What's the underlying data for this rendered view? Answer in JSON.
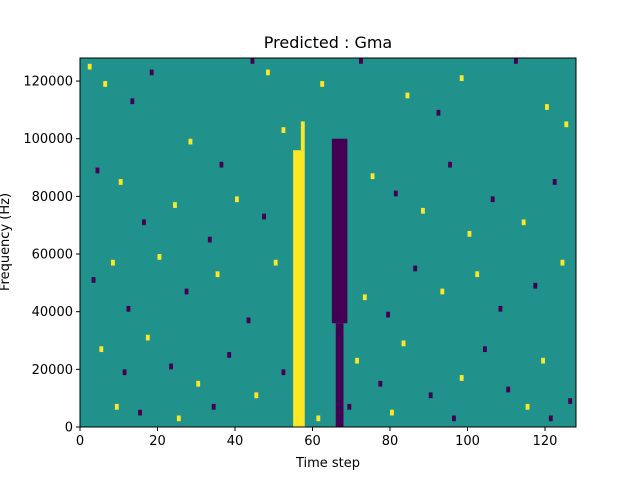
{
  "chart_data": {
    "type": "heatmap",
    "title": "Predicted : Gma",
    "xlabel": "Time step",
    "ylabel": "Frequency (Hz)",
    "xlim": [
      0,
      128
    ],
    "ylim": [
      0,
      128000
    ],
    "xticks": [
      0,
      20,
      40,
      60,
      80,
      100,
      120
    ],
    "xtick_labels": [
      "0",
      "20",
      "40",
      "60",
      "80",
      "100",
      "120"
    ],
    "yticks": [
      0,
      20000,
      40000,
      60000,
      80000,
      100000,
      120000
    ],
    "ytick_labels": [
      "0",
      "20000",
      "40000",
      "60000",
      "80000",
      "100000",
      "120000"
    ],
    "colormap": "viridis",
    "colors": {
      "background": "#21918c",
      "high": "#fde725",
      "low": "#440154"
    },
    "grid": false,
    "legend": "none",
    "n_time_steps": 128,
    "n_frequency_bins": 64,
    "dominant_value": "mid",
    "bands": [
      {
        "level": "high",
        "x": [
          55,
          58
        ],
        "y": [
          0,
          96000
        ]
      },
      {
        "level": "high",
        "x": [
          57,
          58
        ],
        "y": [
          96000,
          106000
        ]
      },
      {
        "level": "low",
        "x": [
          65,
          69
        ],
        "y": [
          36000,
          100000
        ]
      },
      {
        "level": "low",
        "x": [
          66,
          68
        ],
        "y": [
          0,
          36000
        ]
      }
    ],
    "cells": [
      {
        "x": 2,
        "y": 124000,
        "level": "high"
      },
      {
        "x": 6,
        "y": 118000,
        "level": "high"
      },
      {
        "x": 13,
        "y": 112000,
        "level": "low"
      },
      {
        "x": 18,
        "y": 122000,
        "level": "low"
      },
      {
        "x": 28,
        "y": 98000,
        "level": "high"
      },
      {
        "x": 36,
        "y": 90000,
        "level": "low"
      },
      {
        "x": 44,
        "y": 126000,
        "level": "low"
      },
      {
        "x": 48,
        "y": 122000,
        "level": "high"
      },
      {
        "x": 52,
        "y": 102000,
        "level": "high"
      },
      {
        "x": 62,
        "y": 118000,
        "level": "high"
      },
      {
        "x": 72,
        "y": 126000,
        "level": "low"
      },
      {
        "x": 84,
        "y": 114000,
        "level": "high"
      },
      {
        "x": 92,
        "y": 108000,
        "level": "low"
      },
      {
        "x": 98,
        "y": 120000,
        "level": "high"
      },
      {
        "x": 112,
        "y": 126000,
        "level": "low"
      },
      {
        "x": 120,
        "y": 110000,
        "level": "high"
      },
      {
        "x": 125,
        "y": 104000,
        "level": "high"
      },
      {
        "x": 4,
        "y": 88000,
        "level": "low"
      },
      {
        "x": 10,
        "y": 84000,
        "level": "high"
      },
      {
        "x": 16,
        "y": 70000,
        "level": "low"
      },
      {
        "x": 24,
        "y": 76000,
        "level": "high"
      },
      {
        "x": 33,
        "y": 64000,
        "level": "low"
      },
      {
        "x": 40,
        "y": 78000,
        "level": "high"
      },
      {
        "x": 47,
        "y": 72000,
        "level": "low"
      },
      {
        "x": 75,
        "y": 86000,
        "level": "high"
      },
      {
        "x": 81,
        "y": 80000,
        "level": "low"
      },
      {
        "x": 88,
        "y": 74000,
        "level": "high"
      },
      {
        "x": 95,
        "y": 90000,
        "level": "low"
      },
      {
        "x": 100,
        "y": 66000,
        "level": "high"
      },
      {
        "x": 106,
        "y": 78000,
        "level": "low"
      },
      {
        "x": 114,
        "y": 70000,
        "level": "high"
      },
      {
        "x": 122,
        "y": 84000,
        "level": "low"
      },
      {
        "x": 3,
        "y": 50000,
        "level": "low"
      },
      {
        "x": 8,
        "y": 56000,
        "level": "high"
      },
      {
        "x": 12,
        "y": 40000,
        "level": "low"
      },
      {
        "x": 20,
        "y": 58000,
        "level": "high"
      },
      {
        "x": 27,
        "y": 46000,
        "level": "low"
      },
      {
        "x": 35,
        "y": 52000,
        "level": "high"
      },
      {
        "x": 43,
        "y": 36000,
        "level": "low"
      },
      {
        "x": 50,
        "y": 56000,
        "level": "high"
      },
      {
        "x": 73,
        "y": 44000,
        "level": "high"
      },
      {
        "x": 79,
        "y": 38000,
        "level": "low"
      },
      {
        "x": 86,
        "y": 54000,
        "level": "low"
      },
      {
        "x": 93,
        "y": 46000,
        "level": "high"
      },
      {
        "x": 102,
        "y": 52000,
        "level": "high"
      },
      {
        "x": 108,
        "y": 40000,
        "level": "low"
      },
      {
        "x": 117,
        "y": 48000,
        "level": "low"
      },
      {
        "x": 124,
        "y": 56000,
        "level": "high"
      },
      {
        "x": 5,
        "y": 26000,
        "level": "high"
      },
      {
        "x": 11,
        "y": 18000,
        "level": "low"
      },
      {
        "x": 17,
        "y": 30000,
        "level": "high"
      },
      {
        "x": 23,
        "y": 20000,
        "level": "low"
      },
      {
        "x": 30,
        "y": 14000,
        "level": "high"
      },
      {
        "x": 38,
        "y": 24000,
        "level": "low"
      },
      {
        "x": 45,
        "y": 10000,
        "level": "high"
      },
      {
        "x": 52,
        "y": 18000,
        "level": "low"
      },
      {
        "x": 71,
        "y": 22000,
        "level": "high"
      },
      {
        "x": 77,
        "y": 14000,
        "level": "low"
      },
      {
        "x": 83,
        "y": 28000,
        "level": "high"
      },
      {
        "x": 90,
        "y": 10000,
        "level": "low"
      },
      {
        "x": 98,
        "y": 16000,
        "level": "high"
      },
      {
        "x": 104,
        "y": 26000,
        "level": "low"
      },
      {
        "x": 110,
        "y": 12000,
        "level": "low"
      },
      {
        "x": 119,
        "y": 22000,
        "level": "high"
      },
      {
        "x": 126,
        "y": 8000,
        "level": "low"
      },
      {
        "x": 9,
        "y": 6000,
        "level": "high"
      },
      {
        "x": 15,
        "y": 4000,
        "level": "low"
      },
      {
        "x": 25,
        "y": 2000,
        "level": "high"
      },
      {
        "x": 34,
        "y": 6000,
        "level": "low"
      },
      {
        "x": 61,
        "y": 2000,
        "level": "high"
      },
      {
        "x": 69,
        "y": 6000,
        "level": "low"
      },
      {
        "x": 80,
        "y": 4000,
        "level": "high"
      },
      {
        "x": 96,
        "y": 2000,
        "level": "low"
      },
      {
        "x": 115,
        "y": 6000,
        "level": "high"
      },
      {
        "x": 121,
        "y": 2000,
        "level": "low"
      }
    ]
  }
}
